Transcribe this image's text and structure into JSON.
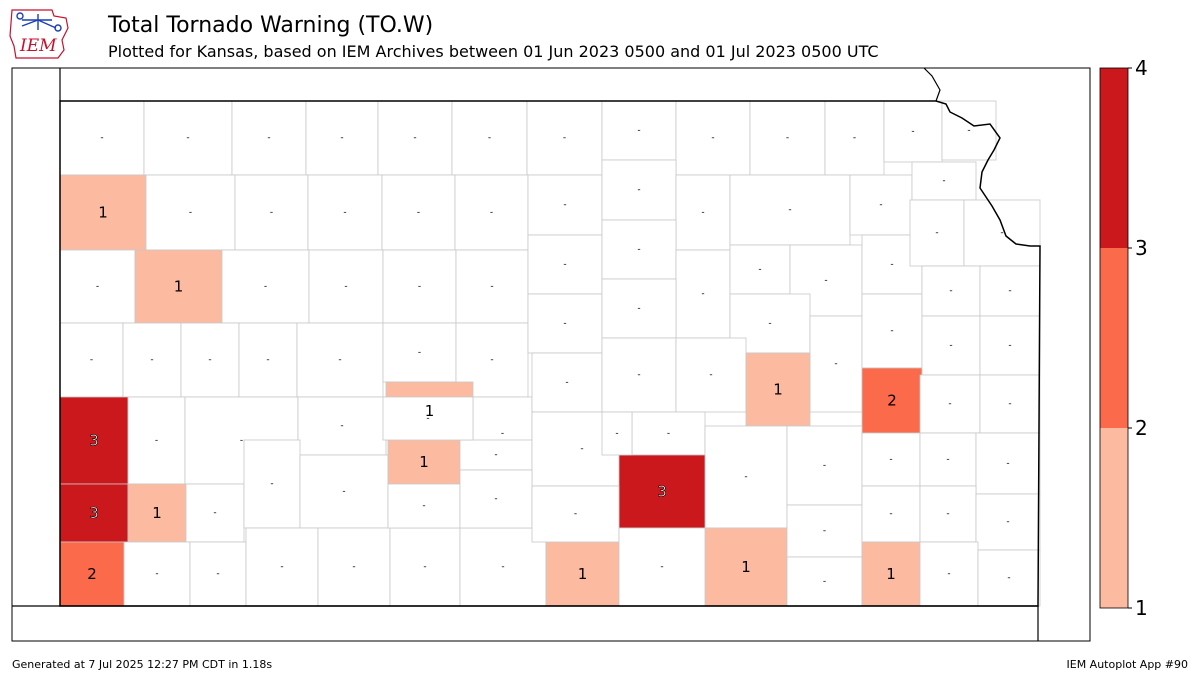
{
  "header": {
    "title": "Total Tornado Warning (TO.W)",
    "subtitle": "Plotted for Kansas, based on IEM Archives  between 01 Jun 2023 0500 and 01 Jul 2023 0500 UTC",
    "logo_text": "IEM"
  },
  "footer": {
    "generated": "Generated at 7 Jul 2025 12:27 PM CDT in 1.18s",
    "app": "IEM Autoplot App #90"
  },
  "colorbar": {
    "ticks": [
      "1",
      "2",
      "3",
      "4"
    ],
    "colors": [
      "#fcbba1",
      "#fb6a4a",
      "#cb181d"
    ]
  },
  "colors": {
    "no_data": "#ffffff",
    "county_border": "#c8c8c8",
    "state_border": "#000000",
    "text_light": "#ffffff",
    "text_dark": "#000000"
  },
  "missing_label": "-",
  "counties": [
    {
      "name": "Hamilton",
      "value": 3
    },
    {
      "name": "Stanton",
      "value": 3
    },
    {
      "name": "Morton",
      "value": 2
    },
    {
      "name": "Grant",
      "value": 1
    },
    {
      "name": "Greeley",
      "value": 1
    },
    {
      "name": "Sherman",
      "value": 1
    },
    {
      "name": "Pawnee",
      "value": 1
    },
    {
      "name": "Edwards",
      "value": 1
    },
    {
      "name": "Reno",
      "value": 1
    },
    {
      "name": "Kingman",
      "value": 3
    },
    {
      "name": "Sedgwick",
      "value": 2
    },
    {
      "name": "Harper",
      "value": 1
    },
    {
      "name": "Sumner",
      "value": 1
    },
    {
      "name": "Cowley",
      "value": 1
    }
  ]
}
